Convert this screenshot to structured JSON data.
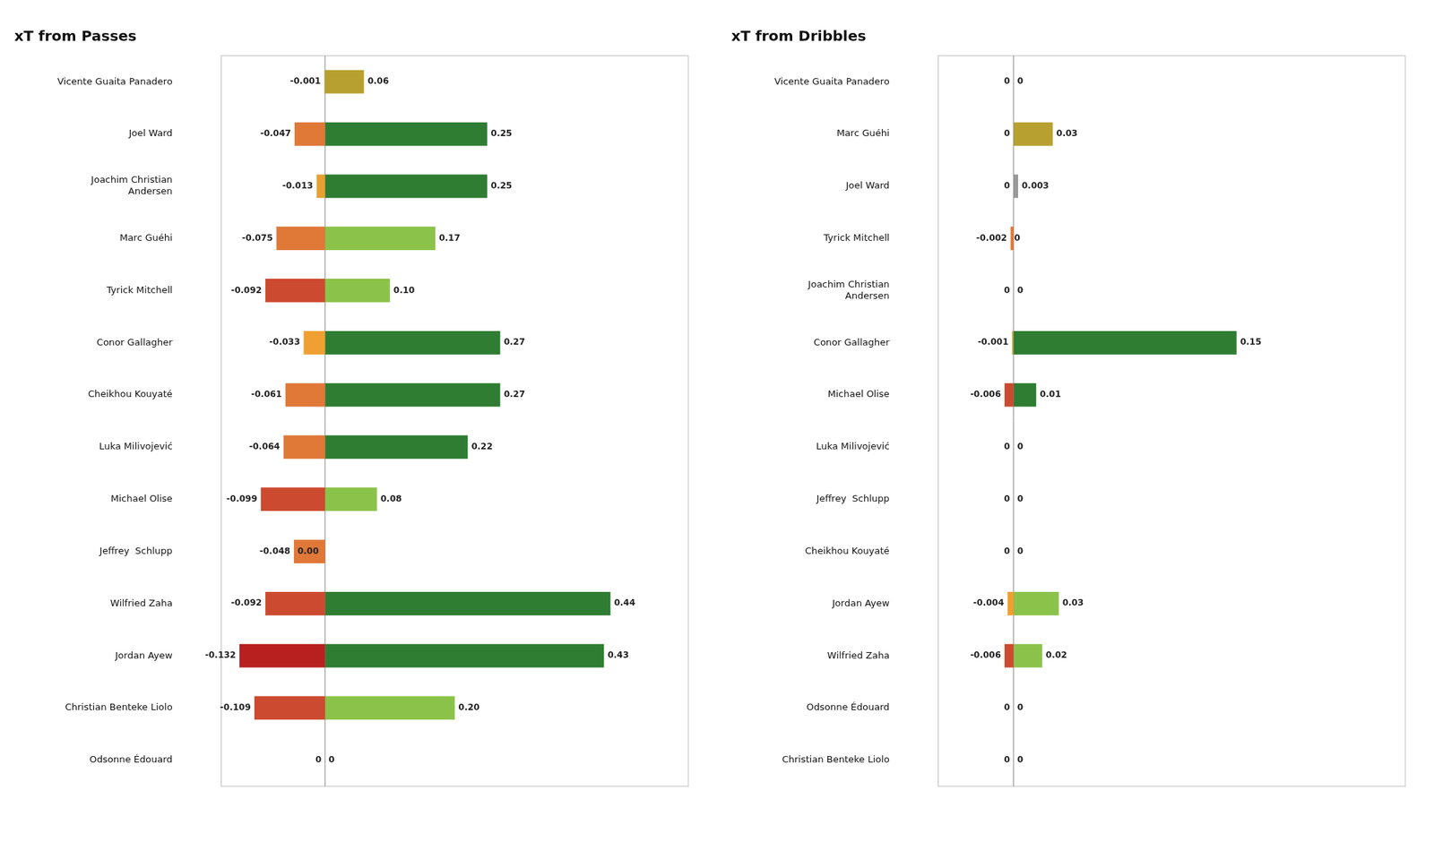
{
  "chart_data": [
    {
      "type": "bar",
      "title": "xT from Passes",
      "orientation": "horizontal",
      "stacked": true,
      "data_labels": true,
      "tick_labels": "y",
      "categories": [
        "Vicente Guaita Panadero",
        "Joel Ward",
        "Joachim Christian\nAndersen",
        "Marc Guéhi",
        "Tyrick Mitchell",
        "Conor Gallagher",
        "Cheikhou Kouyaté",
        "Luka Milivojević",
        "Michael Olise",
        "Jeffrey  Schlupp",
        "Wilfried Zaha",
        "Jordan Ayew",
        "Christian Benteke Liolo",
        "Odsonne Édouard"
      ],
      "xlim": [
        -0.16,
        0.56
      ],
      "series": [
        {
          "values": [
            -0.001,
            -0.047,
            -0.013,
            -0.075,
            -0.092,
            -0.033,
            -0.061,
            -0.064,
            -0.099,
            -0.048,
            -0.092,
            -0.132,
            -0.109,
            0.0
          ],
          "value_labels": [
            "-0.001",
            "-0.047",
            "-0.013",
            "-0.075",
            "-0.092",
            "-0.033",
            "-0.061",
            "-0.064",
            "-0.099",
            "-0.048",
            "-0.092",
            "-0.132",
            "-0.109",
            "0"
          ],
          "colors": [
            "#b8a030",
            "#e07838",
            "#e8a030",
            "#e07838",
            "#cc4a30",
            "#f0a030",
            "#e07838",
            "#e07838",
            "#cc4a30",
            "#e07838",
            "#cc4a30",
            "#b82020",
            "#cc4a30",
            "#999999"
          ]
        },
        {
          "values": [
            0.06,
            0.25,
            0.25,
            0.17,
            0.1,
            0.27,
            0.27,
            0.22,
            0.08,
            0.0,
            0.44,
            0.43,
            0.2,
            0.0
          ],
          "value_labels": [
            "0.06",
            "0.25",
            "0.25",
            "0.17",
            "0.10",
            "0.27",
            "0.27",
            "0.22",
            "0.08",
            "0.00",
            "0.44",
            "0.43",
            "0.20",
            "0"
          ],
          "colors": [
            "#b8a030",
            "#2e7d32",
            "#2e7d32",
            "#8bc34a",
            "#8bc34a",
            "#2e7d32",
            "#2e7d32",
            "#2e7d32",
            "#8bc34a",
            "#999999",
            "#2e7d32",
            "#2e7d32",
            "#8bc34a",
            "#999999"
          ]
        }
      ]
    },
    {
      "type": "bar",
      "title": "xT from Dribbles",
      "orientation": "horizontal",
      "stacked": true,
      "data_labels": true,
      "tick_labels": "y",
      "categories": [
        "Vicente Guaita Panadero",
        "Marc Guéhi",
        "Joel Ward",
        "Tyrick Mitchell",
        "Joachim Christian\nAndersen",
        "Conor Gallagher",
        "Michael Olise",
        "Luka Milivojević",
        "Jeffrey  Schlupp",
        "Cheikhou Kouyaté",
        "Jordan Ayew",
        "Wilfried Zaha",
        "Odsonne Édouard",
        "Christian Benteke Liolo"
      ],
      "xlim": [
        -0.05,
        0.26
      ],
      "series": [
        {
          "values": [
            0.0,
            0.0,
            0.0,
            -0.002,
            0.0,
            -0.001,
            -0.006,
            0.0,
            0.0,
            0.0,
            -0.004,
            -0.006,
            0.0,
            0.0
          ],
          "value_labels": [
            "0",
            "0",
            "0",
            "-0.002",
            "0",
            "-0.001",
            "-0.006",
            "0",
            "0",
            "0",
            "-0.004",
            "-0.006",
            "0",
            "0"
          ],
          "colors": [
            "#999999",
            "#999999",
            "#999999",
            "#e07838",
            "#999999",
            "#b8a030",
            "#cc4a30",
            "#999999",
            "#999999",
            "#999999",
            "#f0a030",
            "#cc4a30",
            "#999999",
            "#999999"
          ]
        },
        {
          "values": [
            0.0,
            0.026,
            0.003,
            0.0,
            0.0,
            0.148,
            0.015,
            0.0,
            0.0,
            0.0,
            0.03,
            0.019,
            0.0,
            0.0
          ],
          "value_labels": [
            "0",
            "0.03",
            "0.003",
            "0",
            "0",
            "0.15",
            "0.01",
            "0",
            "0",
            "0",
            "0.03",
            "0.02",
            "0",
            "0"
          ],
          "colors": [
            "#999999",
            "#b8a030",
            "#999999",
            "#999999",
            "#999999",
            "#2e7d32",
            "#2e7d32",
            "#999999",
            "#999999",
            "#999999",
            "#8bc34a",
            "#8bc34a",
            "#999999",
            "#999999"
          ]
        }
      ]
    }
  ]
}
